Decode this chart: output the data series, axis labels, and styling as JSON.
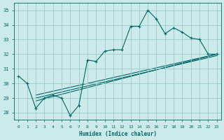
{
  "xlabel": "Humidex (Indice chaleur)",
  "bg_color": "#cceaea",
  "grid_color": "#99cccc",
  "line_color": "#006666",
  "xlim": [
    -0.5,
    23.5
  ],
  "ylim": [
    27.5,
    35.5
  ],
  "xticks": [
    0,
    1,
    2,
    3,
    4,
    5,
    6,
    7,
    8,
    9,
    10,
    11,
    12,
    13,
    14,
    15,
    16,
    17,
    18,
    19,
    20,
    21,
    22,
    23
  ],
  "yticks": [
    28,
    29,
    30,
    31,
    32,
    33,
    34,
    35
  ],
  "main_x": [
    0,
    1,
    2,
    3,
    4,
    5,
    6,
    7,
    8,
    9,
    10,
    11,
    12,
    13,
    14,
    15,
    16,
    17,
    18,
    19,
    20,
    21,
    22,
    23
  ],
  "main_y": [
    30.5,
    30.0,
    28.3,
    29.0,
    29.2,
    29.0,
    27.8,
    28.5,
    31.6,
    31.5,
    32.2,
    32.3,
    32.3,
    33.9,
    33.9,
    35.0,
    34.4,
    33.4,
    33.8,
    33.5,
    33.1,
    33.0,
    32.0,
    32.0
  ],
  "trend1_x": [
    2,
    23
  ],
  "trend1_y": [
    29.2,
    32.0
  ],
  "trend2_x": [
    2,
    23
  ],
  "trend2_y": [
    29.0,
    31.9
  ],
  "trend3_x": [
    2,
    23
  ],
  "trend3_y": [
    28.8,
    32.0
  ]
}
